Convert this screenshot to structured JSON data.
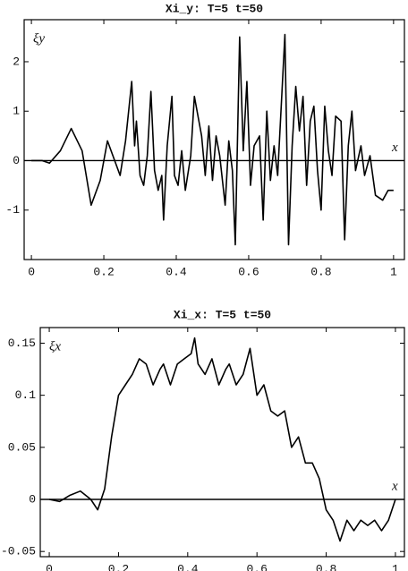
{
  "chart_data": [
    {
      "type": "line",
      "title": "Xi_y: T=5 t=50",
      "ylabel": "ξy",
      "xlabel": "x",
      "color": "#000000",
      "x": [
        0,
        0.03,
        0.05,
        0.08,
        0.11,
        0.14,
        0.165,
        0.19,
        0.21,
        0.23,
        0.245,
        0.26,
        0.277,
        0.285,
        0.29,
        0.3,
        0.31,
        0.32,
        0.33,
        0.34,
        0.35,
        0.36,
        0.365,
        0.375,
        0.388,
        0.395,
        0.405,
        0.415,
        0.425,
        0.44,
        0.45,
        0.47,
        0.48,
        0.49,
        0.5,
        0.51,
        0.52,
        0.535,
        0.545,
        0.555,
        0.563,
        0.575,
        0.585,
        0.595,
        0.605,
        0.615,
        0.63,
        0.64,
        0.65,
        0.66,
        0.67,
        0.68,
        0.7,
        0.71,
        0.72,
        0.73,
        0.74,
        0.75,
        0.76,
        0.77,
        0.78,
        0.79,
        0.8,
        0.81,
        0.82,
        0.83,
        0.84,
        0.855,
        0.865,
        0.875,
        0.885,
        0.895,
        0.91,
        0.92,
        0.935,
        0.95,
        0.97,
        0.985,
        1.0
      ],
      "values": [
        0,
        0,
        -0.05,
        0.2,
        0.65,
        0.2,
        -0.9,
        -0.4,
        0.4,
        0,
        -0.3,
        0.4,
        1.6,
        0.3,
        0.8,
        -0.3,
        -0.5,
        0.1,
        1.4,
        -0.2,
        -0.6,
        -0.3,
        -1.2,
        0.3,
        1.3,
        -0.3,
        -0.5,
        0.2,
        -0.6,
        0.1,
        1.3,
        0.5,
        -0.3,
        0.7,
        -0.4,
        0.5,
        0.1,
        -0.9,
        0.4,
        -0.2,
        -1.7,
        2.5,
        0.2,
        1.6,
        -0.5,
        0.3,
        0.5,
        -1.2,
        1.0,
        -0.4,
        0.3,
        -0.3,
        2.55,
        -1.7,
        0.3,
        1.5,
        0.6,
        1.3,
        -0.5,
        0.8,
        1.1,
        -0.2,
        -1.0,
        1.1,
        0.2,
        -0.3,
        0.9,
        0.8,
        -1.6,
        0.3,
        1.0,
        -0.2,
        0.3,
        -0.3,
        0.1,
        -0.7,
        -0.8,
        -0.6,
        -0.6
      ],
      "xlim": [
        -0.02,
        1.03
      ],
      "ylim": [
        -2,
        2.85
      ],
      "xticks": [
        0,
        0.2,
        0.4,
        0.6,
        0.8,
        1
      ],
      "yticks": [
        -1,
        0,
        1,
        2
      ]
    },
    {
      "type": "line",
      "title": "Xi_x: T=5 t=50",
      "ylabel": "ξx",
      "xlabel": "x",
      "color": "#000000",
      "x": [
        0,
        0.03,
        0.06,
        0.09,
        0.12,
        0.14,
        0.16,
        0.18,
        0.2,
        0.22,
        0.24,
        0.26,
        0.28,
        0.3,
        0.32,
        0.33,
        0.35,
        0.37,
        0.39,
        0.41,
        0.42,
        0.43,
        0.45,
        0.47,
        0.49,
        0.51,
        0.52,
        0.54,
        0.56,
        0.58,
        0.6,
        0.62,
        0.64,
        0.66,
        0.68,
        0.7,
        0.72,
        0.74,
        0.76,
        0.78,
        0.8,
        0.82,
        0.84,
        0.86,
        0.88,
        0.9,
        0.92,
        0.94,
        0.96,
        0.98,
        1.0
      ],
      "values": [
        0,
        -0.002,
        0.004,
        0.008,
        0,
        -0.01,
        0.01,
        0.06,
        0.1,
        0.11,
        0.12,
        0.135,
        0.13,
        0.11,
        0.125,
        0.13,
        0.11,
        0.13,
        0.135,
        0.14,
        0.155,
        0.13,
        0.12,
        0.135,
        0.11,
        0.125,
        0.13,
        0.11,
        0.12,
        0.145,
        0.1,
        0.11,
        0.085,
        0.08,
        0.085,
        0.05,
        0.06,
        0.035,
        0.035,
        0.02,
        -0.01,
        -0.02,
        -0.04,
        -0.02,
        -0.03,
        -0.02,
        -0.025,
        -0.02,
        -0.03,
        -0.02,
        0
      ],
      "xlim": [
        -0.026,
        1.026
      ],
      "ylim": [
        -0.055,
        0.165
      ],
      "xticks": [
        0,
        0.2,
        0.4,
        0.6,
        0.8,
        1
      ],
      "yticks": [
        -0.05,
        0,
        0.05,
        0.1,
        0.15
      ]
    }
  ]
}
